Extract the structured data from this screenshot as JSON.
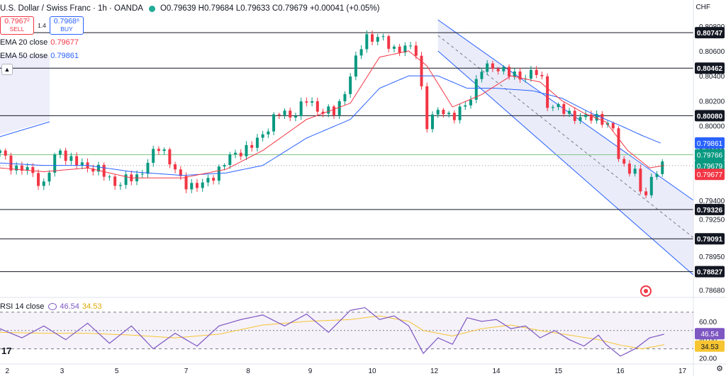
{
  "header": {
    "symbol": "U.S. Dollar / Swiss Franc · 1h · OANDA",
    "ohlc": "O0.79639 H0.79684 L0.79633 C0.79679 +0.00041 (+0.05%)"
  },
  "trade": {
    "sell_price": "0.7967²",
    "sell_label": "SELL",
    "spread": "1.4",
    "buy_price": "0.7968⁶",
    "buy_label": "BUY"
  },
  "indicators": {
    "ema20_label": "EMA 20 close",
    "ema20_value": "0.79677",
    "ema50_label": "EMA 50 close",
    "ema50_value": "0.79861",
    "rsi_label": "RSI 14 close",
    "rsi_value": "46.54",
    "rsi_ma_value": "34.53"
  },
  "axis_unit": "CHF",
  "colors": {
    "bull": "#089981",
    "bear": "#f23645",
    "ema20": "#f23645",
    "ema50": "#2962ff",
    "rsi": "#7e57c2",
    "rsi_ma": "#f7c531",
    "channel_fill": "#e8eaf9",
    "channel_line": "#2962ff"
  },
  "chart_data": {
    "type": "candlestick",
    "price_axis": {
      "ticks": [
        "0.80800",
        "0.80600",
        "0.80400",
        "0.80200",
        "0.80000",
        "0.79800",
        "0.79600",
        "0.79400",
        "0.79250",
        "0.79091",
        "0.78950",
        "0.78827",
        "0.78680"
      ],
      "range": [
        0.7862,
        0.8085
      ]
    },
    "horizontal_levels": [
      {
        "label": "0.80747",
        "value": 0.80747
      },
      {
        "label": "0.80462",
        "value": 0.80462
      },
      {
        "label": "0.80080",
        "value": 0.8008
      },
      {
        "label": "0.79326",
        "value": 0.79326
      },
      {
        "label": "0.79091",
        "value": 0.79091
      },
      {
        "label": "0.78827",
        "value": 0.78827
      },
      {
        "label": "0.79766",
        "value": 0.79766
      }
    ],
    "price_badges": [
      {
        "label": "0.79861",
        "value": 0.79861,
        "color": "#2962ff"
      },
      {
        "label": "0.79766",
        "value": 0.79766,
        "color": "#089981"
      },
      {
        "label": "0.79679",
        "value": 0.79679,
        "color": "#089981",
        "sub": "13:49"
      },
      {
        "label": "0.79677",
        "value": 0.79677,
        "color": "#f23645"
      }
    ],
    "x_ticks": [
      {
        "label": "2",
        "hour": 2
      },
      {
        "label": "3",
        "hour": 17
      },
      {
        "label": "5",
        "hour": 32
      },
      {
        "label": "7",
        "hour": 51
      },
      {
        "label": "8",
        "hour": 68
      },
      {
        "label": "9",
        "hour": 85
      },
      {
        "label": "10",
        "hour": 102
      },
      {
        "label": "12",
        "hour": 119
      },
      {
        "label": "14",
        "hour": 136
      },
      {
        "label": "15",
        "hour": 153
      },
      {
        "label": "16",
        "hour": 170
      },
      {
        "label": "17",
        "hour": 187
      }
    ],
    "price_path": [
      [
        0,
        0.7978
      ],
      [
        4,
        0.7966
      ],
      [
        8,
        0.7964
      ],
      [
        12,
        0.7952
      ],
      [
        16,
        0.7982
      ],
      [
        20,
        0.797
      ],
      [
        26,
        0.7966
      ],
      [
        32,
        0.7953
      ],
      [
        38,
        0.796
      ],
      [
        44,
        0.7985
      ],
      [
        50,
        0.7953
      ],
      [
        56,
        0.7952
      ],
      [
        62,
        0.7972
      ],
      [
        66,
        0.798
      ],
      [
        70,
        0.7985
      ],
      [
        76,
        0.801
      ],
      [
        80,
        0.8008
      ],
      [
        84,
        0.802
      ],
      [
        88,
        0.8012
      ],
      [
        92,
        0.801
      ],
      [
        96,
        0.804
      ],
      [
        100,
        0.8072
      ],
      [
        104,
        0.807
      ],
      [
        108,
        0.8062
      ],
      [
        112,
        0.8062
      ],
      [
        114,
        0.806
      ],
      [
        117,
        0.8
      ],
      [
        121,
        0.8015
      ],
      [
        124,
        0.8005
      ],
      [
        128,
        0.8018
      ],
      [
        132,
        0.8045
      ],
      [
        136,
        0.8048
      ],
      [
        140,
        0.804
      ],
      [
        144,
        0.804
      ],
      [
        148,
        0.8043
      ],
      [
        150,
        0.8018
      ],
      [
        154,
        0.8012
      ],
      [
        160,
        0.8005
      ],
      [
        164,
        0.8008
      ],
      [
        168,
        0.7995
      ],
      [
        170,
        0.797
      ],
      [
        174,
        0.7962
      ],
      [
        176,
        0.794
      ],
      [
        178,
        0.7955
      ],
      [
        180,
        0.7964
      ],
      [
        182,
        0.7968
      ]
    ],
    "ema20_path": [
      [
        0,
        0.7966
      ],
      [
        12,
        0.7963
      ],
      [
        24,
        0.7966
      ],
      [
        36,
        0.7958
      ],
      [
        50,
        0.7958
      ],
      [
        62,
        0.7965
      ],
      [
        72,
        0.798
      ],
      [
        84,
        0.8005
      ],
      [
        96,
        0.8018
      ],
      [
        104,
        0.8055
      ],
      [
        112,
        0.806
      ],
      [
        117,
        0.8048
      ],
      [
        124,
        0.8015
      ],
      [
        132,
        0.8025
      ],
      [
        140,
        0.804
      ],
      [
        148,
        0.8035
      ],
      [
        154,
        0.802
      ],
      [
        160,
        0.801
      ],
      [
        166,
        0.8003
      ],
      [
        172,
        0.798
      ],
      [
        178,
        0.7966
      ],
      [
        182,
        0.7968
      ]
    ],
    "ema50_path": [
      [
        0,
        0.797
      ],
      [
        12,
        0.7968
      ],
      [
        24,
        0.7968
      ],
      [
        36,
        0.7963
      ],
      [
        50,
        0.796
      ],
      [
        62,
        0.7962
      ],
      [
        72,
        0.7968
      ],
      [
        84,
        0.799
      ],
      [
        96,
        0.8005
      ],
      [
        104,
        0.803
      ],
      [
        112,
        0.804
      ],
      [
        120,
        0.804
      ],
      [
        128,
        0.803
      ],
      [
        136,
        0.803
      ],
      [
        146,
        0.8028
      ],
      [
        154,
        0.8022
      ],
      [
        162,
        0.801
      ],
      [
        170,
        0.8
      ],
      [
        176,
        0.7992
      ],
      [
        181,
        0.7986
      ]
    ],
    "rsi": {
      "levels": [
        70,
        50,
        30
      ],
      "ticks": [
        "60.00",
        "40.00",
        "20.00"
      ],
      "range": [
        15,
        80
      ],
      "rsi_path": [
        [
          0,
          52
        ],
        [
          6,
          42
        ],
        [
          12,
          55
        ],
        [
          18,
          40
        ],
        [
          24,
          58
        ],
        [
          30,
          36
        ],
        [
          36,
          55
        ],
        [
          42,
          30
        ],
        [
          48,
          47
        ],
        [
          54,
          33
        ],
        [
          60,
          55
        ],
        [
          66,
          62
        ],
        [
          72,
          67
        ],
        [
          78,
          55
        ],
        [
          84,
          68
        ],
        [
          90,
          48
        ],
        [
          96,
          72
        ],
        [
          100,
          75
        ],
        [
          104,
          62
        ],
        [
          108,
          66
        ],
        [
          112,
          55
        ],
        [
          116,
          25
        ],
        [
          120,
          42
        ],
        [
          124,
          35
        ],
        [
          128,
          64
        ],
        [
          132,
          60
        ],
        [
          136,
          62
        ],
        [
          140,
          52
        ],
        [
          144,
          55
        ],
        [
          148,
          42
        ],
        [
          152,
          50
        ],
        [
          156,
          40
        ],
        [
          160,
          33
        ],
        [
          164,
          45
        ],
        [
          166,
          35
        ],
        [
          170,
          22
        ],
        [
          174,
          30
        ],
        [
          178,
          42
        ],
        [
          182,
          46
        ]
      ],
      "ma_path": [
        [
          0,
          48
        ],
        [
          12,
          47
        ],
        [
          24,
          47
        ],
        [
          36,
          45
        ],
        [
          48,
          42
        ],
        [
          60,
          46
        ],
        [
          72,
          56
        ],
        [
          84,
          60
        ],
        [
          96,
          62
        ],
        [
          104,
          66
        ],
        [
          112,
          60
        ],
        [
          116,
          50
        ],
        [
          124,
          44
        ],
        [
          132,
          52
        ],
        [
          140,
          56
        ],
        [
          148,
          50
        ],
        [
          156,
          45
        ],
        [
          164,
          40
        ],
        [
          170,
          34
        ],
        [
          176,
          30
        ],
        [
          182,
          34.5
        ]
      ]
    }
  }
}
